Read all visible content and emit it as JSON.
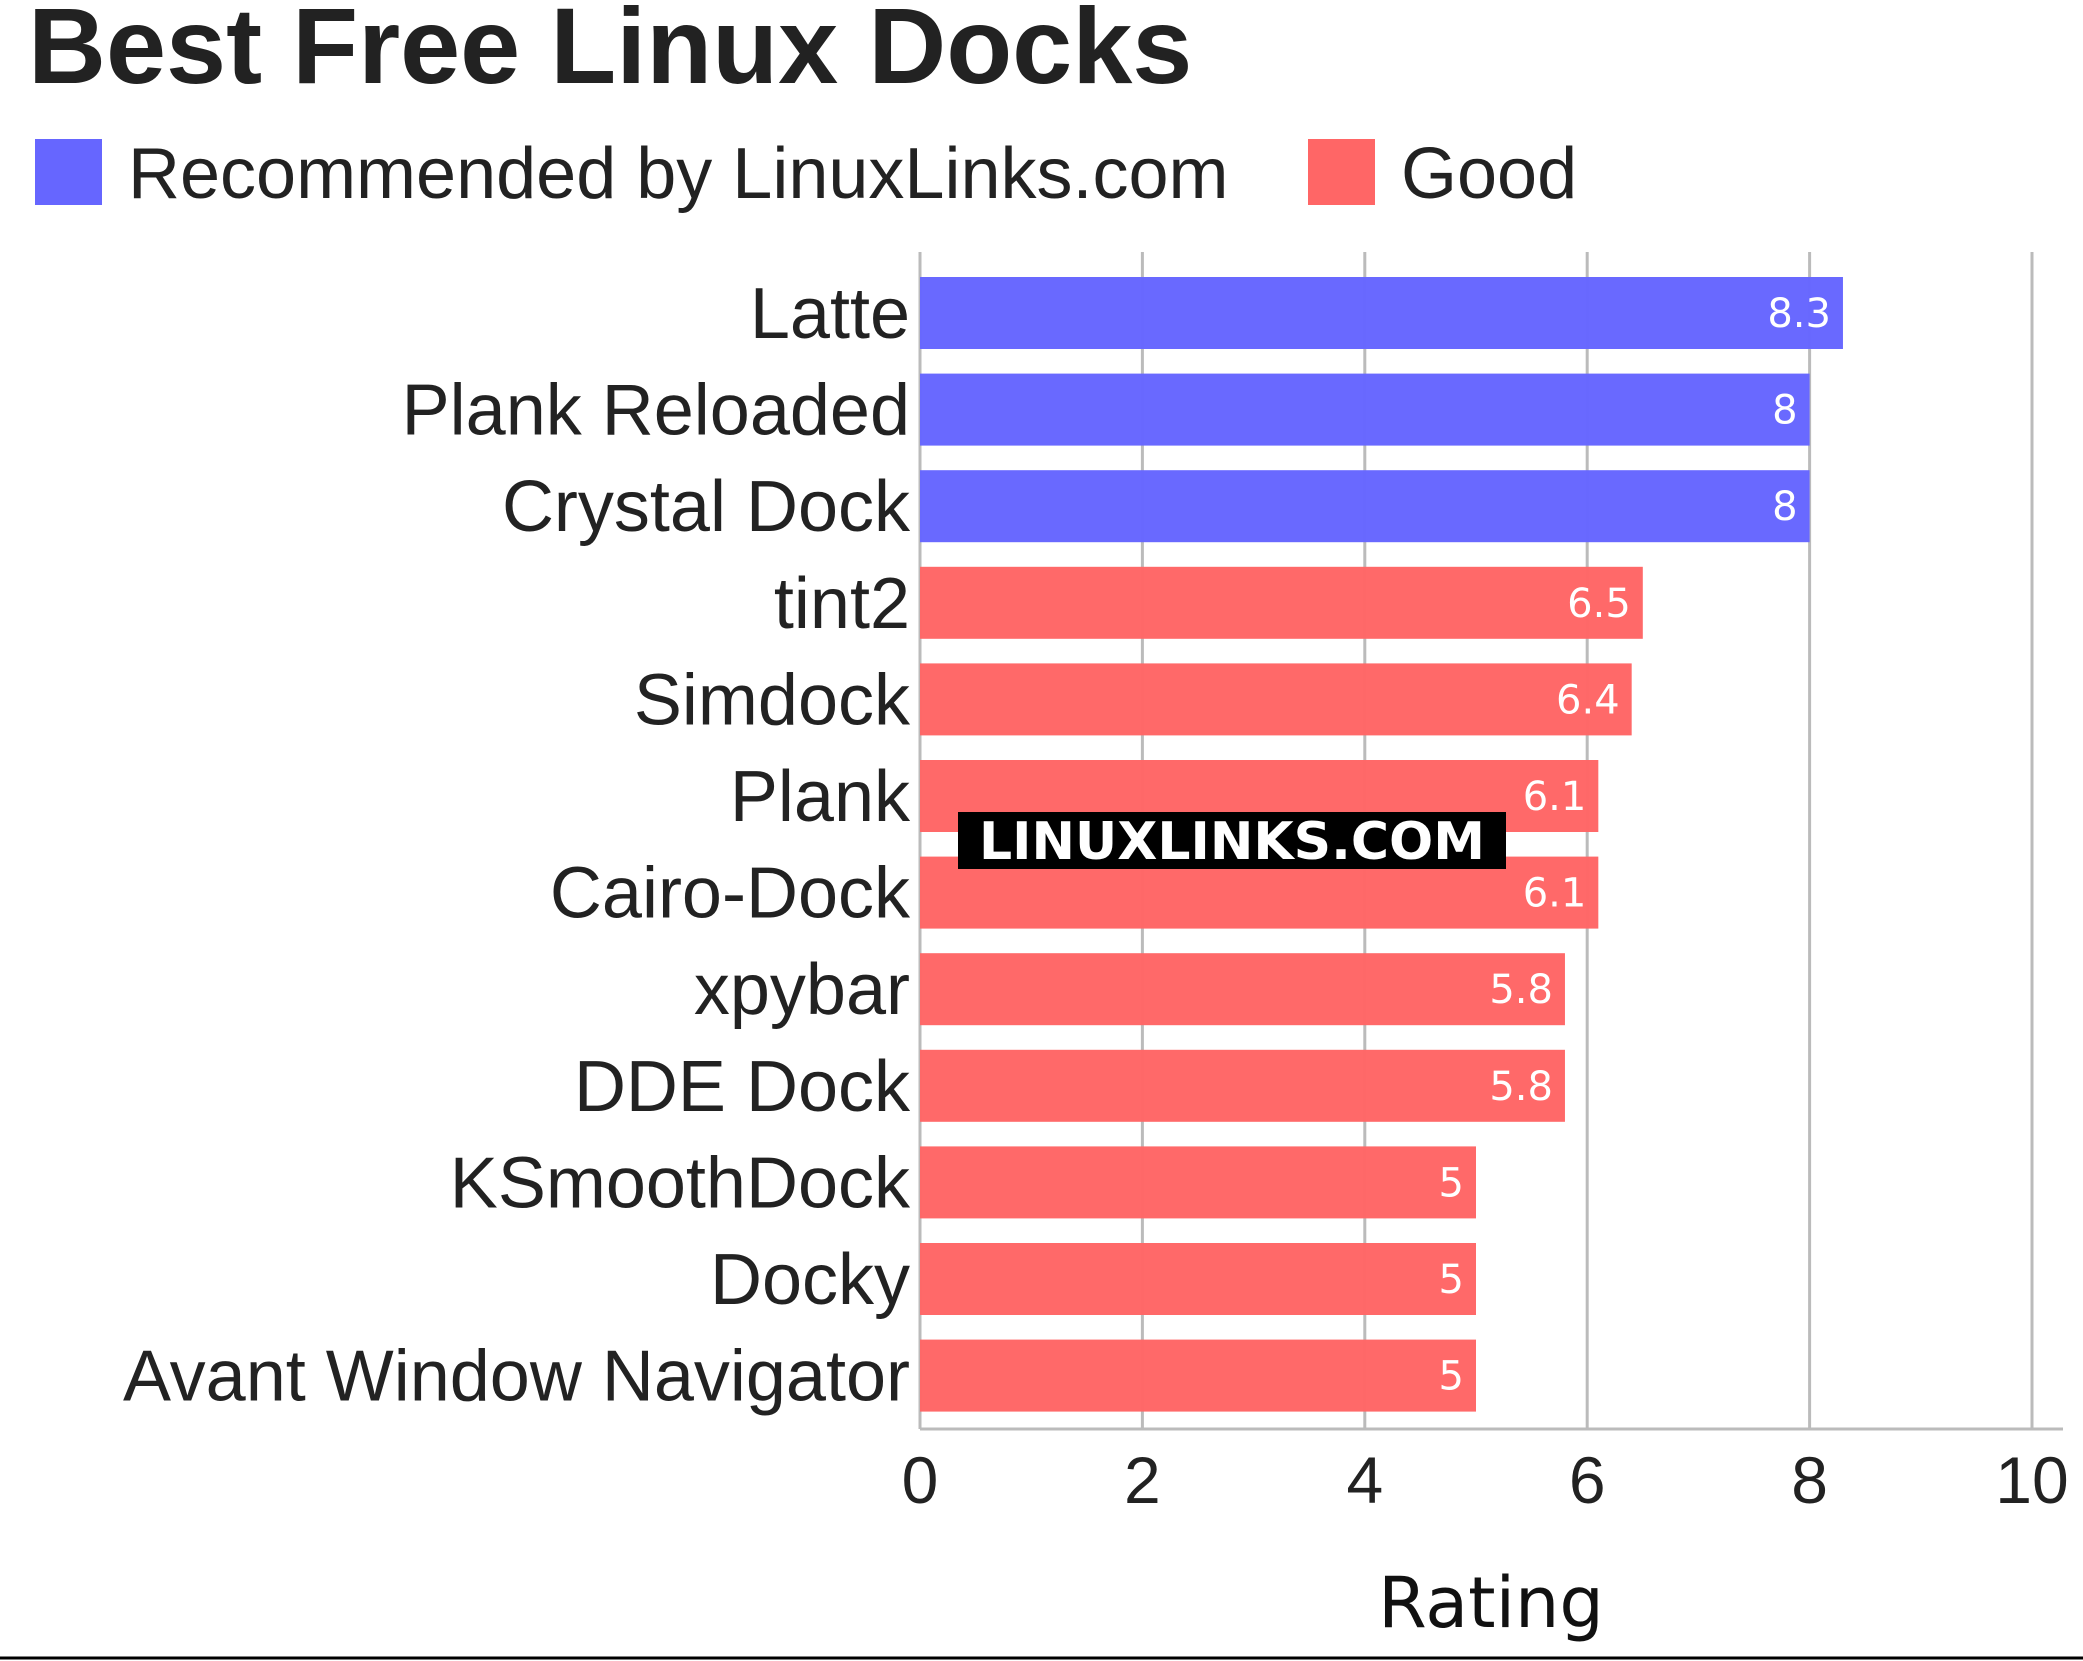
{
  "chart_data": {
    "type": "bar",
    "orientation": "horizontal",
    "title": "Best Free Linux Docks",
    "xlabel": "Rating",
    "ylabel": "",
    "xlim": [
      0,
      10
    ],
    "xticks": [
      "0",
      "2",
      "4",
      "6",
      "8",
      "10"
    ],
    "grid": true,
    "legend_position": "top-left",
    "legend": [
      {
        "name": "Recommended by LinuxLinks.com",
        "color": "#6666ff"
      },
      {
        "name": "Good",
        "color": "#ff6666"
      }
    ],
    "categories": [
      "Latte",
      "Plank Reloaded",
      "Crystal Dock",
      "tint2",
      "Simdock",
      "Plank",
      "Cairo-Dock",
      "xpybar",
      "DDE Dock",
      "KSmoothDock",
      "Docky",
      "Avant Window Navigator"
    ],
    "values": [
      8.3,
      8,
      8,
      6.5,
      6.4,
      6.1,
      6.1,
      5.8,
      5.8,
      5,
      5,
      5
    ],
    "value_labels": [
      "8.3",
      "8",
      "8",
      "6.5",
      "6.4",
      "6.1",
      "6.1",
      "5.8",
      "5.8",
      "5",
      "5",
      "5"
    ],
    "groups": [
      "Recommended by LinuxLinks.com",
      "Recommended by LinuxLinks.com",
      "Recommended by LinuxLinks.com",
      "Good",
      "Good",
      "Good",
      "Good",
      "Good",
      "Good",
      "Good",
      "Good",
      "Good"
    ]
  },
  "watermark": "LINUXLINKS.COM"
}
